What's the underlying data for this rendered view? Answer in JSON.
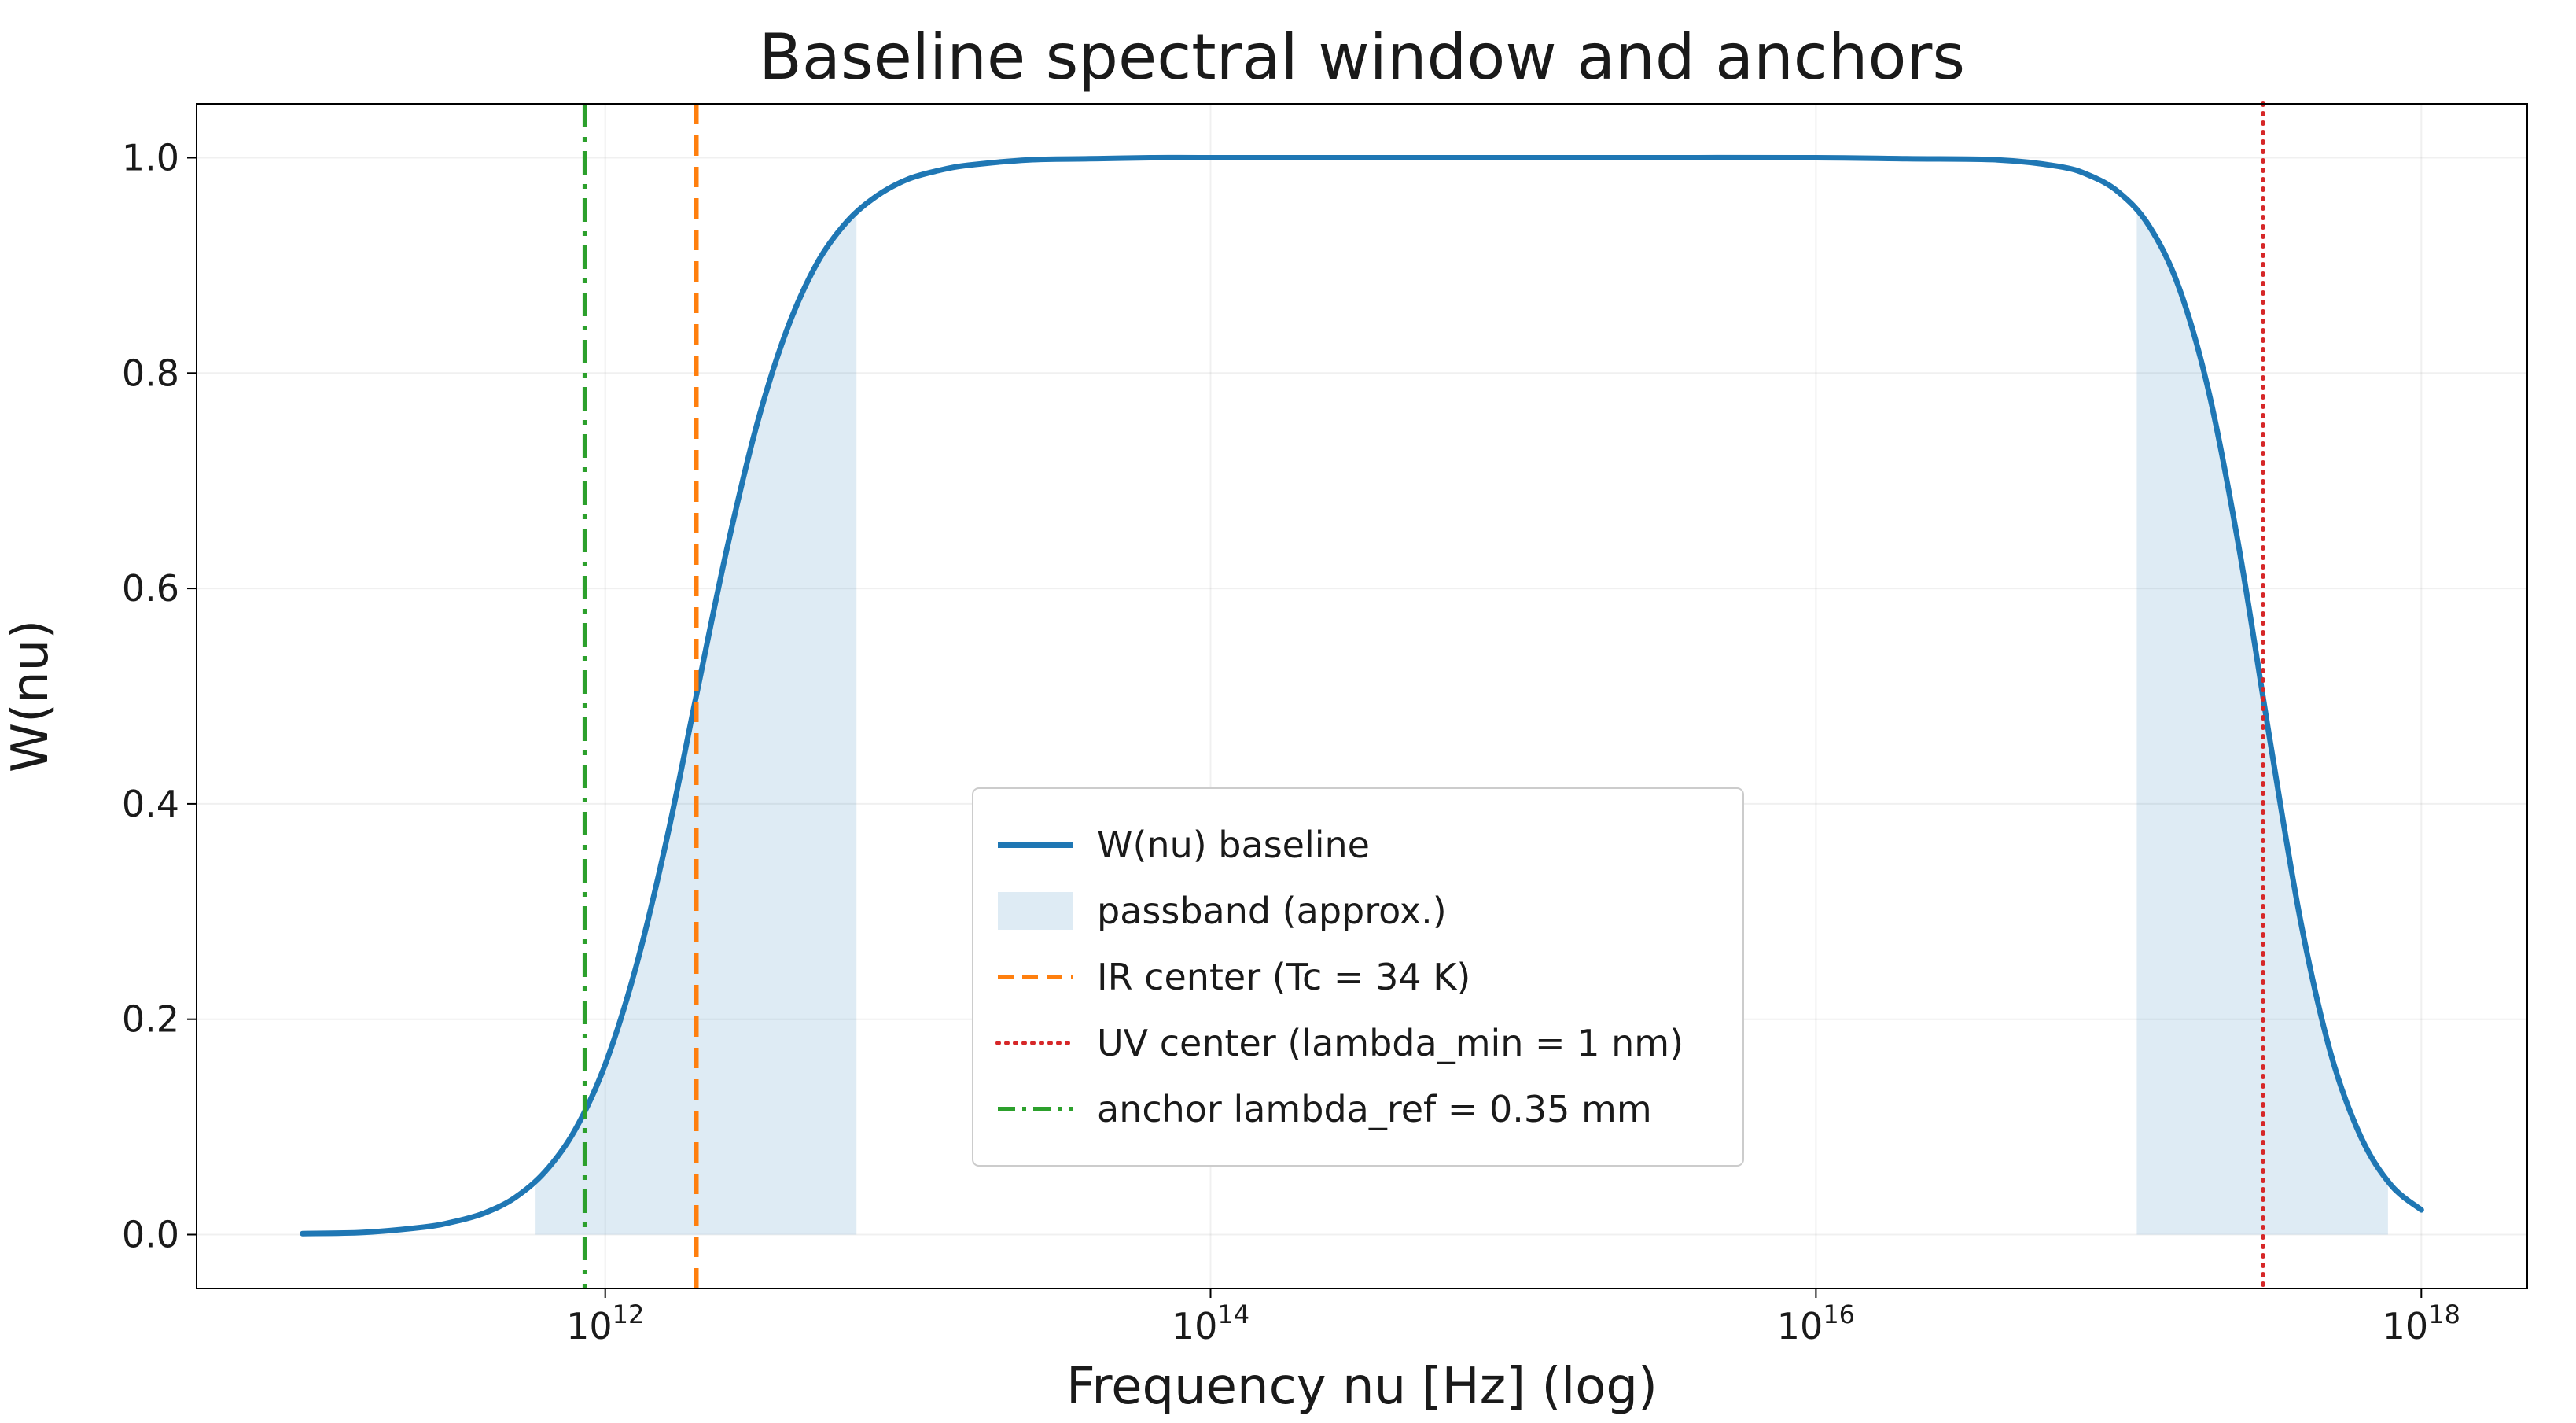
{
  "window": {
    "background": "#ffffff"
  },
  "chart_data": {
    "type": "line",
    "title": "Baseline spectral window and anchors",
    "xlabel": "Frequency nu [Hz] (log)",
    "ylabel": "W(nu)",
    "x_scale": "log10",
    "xlim_log10": [
      10.65,
      18.35
    ],
    "ylim": [
      -0.05,
      1.05
    ],
    "x_tick_base": "10",
    "x_tick_exponents": [
      12,
      14,
      16,
      18
    ],
    "y_ticks": [
      0.0,
      0.2,
      0.4,
      0.6,
      0.8,
      1.0
    ],
    "grid": {
      "visible": true,
      "color": "#999999",
      "alpha": 0.15
    },
    "series": [
      {
        "name": "W(nu) baseline",
        "color": "#1f77b4",
        "style": "solid",
        "linewidth": 7,
        "points": [
          [
            11.0,
            0.001
          ],
          [
            11.2,
            0.002
          ],
          [
            11.4,
            0.007
          ],
          [
            11.5,
            0.012
          ],
          [
            11.6,
            0.02
          ],
          [
            11.7,
            0.034
          ],
          [
            11.8,
            0.058
          ],
          [
            11.9,
            0.097
          ],
          [
            12.0,
            0.158
          ],
          [
            12.1,
            0.247
          ],
          [
            12.2,
            0.363
          ],
          [
            12.3,
            0.499
          ],
          [
            12.4,
            0.634
          ],
          [
            12.5,
            0.751
          ],
          [
            12.6,
            0.84
          ],
          [
            12.7,
            0.902
          ],
          [
            12.8,
            0.941
          ],
          [
            12.9,
            0.965
          ],
          [
            13.0,
            0.98
          ],
          [
            13.1,
            0.988
          ],
          [
            13.2,
            0.993
          ],
          [
            13.4,
            0.998
          ],
          [
            13.6,
            0.999
          ],
          [
            13.8,
            1.0
          ],
          [
            14.0,
            1.0
          ],
          [
            14.5,
            1.0
          ],
          [
            15.0,
            1.0
          ],
          [
            15.5,
            1.0
          ],
          [
            16.0,
            1.0
          ],
          [
            16.3,
            0.999
          ],
          [
            16.6,
            0.998
          ],
          [
            16.8,
            0.992
          ],
          [
            16.9,
            0.984
          ],
          [
            17.0,
            0.968
          ],
          [
            17.1,
            0.937
          ],
          [
            17.2,
            0.879
          ],
          [
            17.3,
            0.78
          ],
          [
            17.4,
            0.634
          ],
          [
            17.5,
            0.459
          ],
          [
            17.6,
            0.293
          ],
          [
            17.7,
            0.169
          ],
          [
            17.8,
            0.091
          ],
          [
            17.9,
            0.046
          ],
          [
            18.0,
            0.023
          ]
        ]
      }
    ],
    "passband": {
      "label": "passband (approx.)",
      "color": "#1f77b4",
      "alpha": 0.15,
      "regions_log10nu": [
        [
          11.77,
          12.83
        ],
        [
          17.06,
          17.89
        ]
      ]
    },
    "vlines": [
      {
        "id": "ir-center",
        "label": "IR center (Tc = 34 K)",
        "log10nu": 12.301,
        "color": "#ff7f0e",
        "style": "dashed"
      },
      {
        "id": "uv-center",
        "label": "UV center (lambda_min = 1 nm)",
        "log10nu": 17.477,
        "color": "#d62728",
        "style": "dotted"
      },
      {
        "id": "anchor-ref",
        "label": "anchor lambda_ref = 0.35 mm",
        "log10nu": 11.933,
        "color": "#2ca02c",
        "style": "dashdot"
      }
    ],
    "legend": {
      "position": "lower-center-left",
      "entries": [
        {
          "label": "W(nu) baseline",
          "swatch": "line",
          "color": "#1f77b4",
          "style": "solid"
        },
        {
          "label": "passband (approx.)",
          "swatch": "patch",
          "color": "#1f77b4",
          "alpha": 0.15
        },
        {
          "label": "IR center (Tc = 34 K)",
          "swatch": "line",
          "color": "#ff7f0e",
          "style": "dashed"
        },
        {
          "label": "UV center (lambda_min = 1 nm)",
          "swatch": "line",
          "color": "#d62728",
          "style": "dotted"
        },
        {
          "label": "anchor lambda_ref = 0.35 mm",
          "swatch": "line",
          "color": "#2ca02c",
          "style": "dashdot"
        }
      ]
    }
  }
}
